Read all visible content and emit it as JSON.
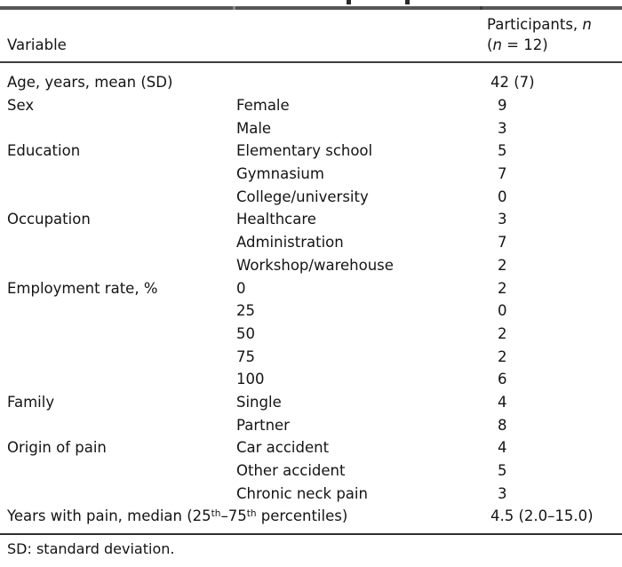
{
  "table": {
    "header": {
      "col1": "Variable",
      "col3_line1_text": "Participants, ",
      "col3_line1_italic": "n",
      "col3_line2_open": "(",
      "col3_line2_italic": "n",
      "col3_line2_rest": " = 12)"
    },
    "rows": [
      {
        "variable": "Age, years, mean (SD)",
        "category": "",
        "value": "42 (7)"
      },
      {
        "variable": "Sex",
        "category": "Female",
        "value": "9"
      },
      {
        "variable": "",
        "category": "Male",
        "value": "3"
      },
      {
        "variable": "Education",
        "category": "Elementary school",
        "value": "5"
      },
      {
        "variable": "",
        "category": "Gymnasium",
        "value": "7"
      },
      {
        "variable": "",
        "category": "College/university",
        "value": "0"
      },
      {
        "variable": "Occupation",
        "category": "Healthcare",
        "value": "3"
      },
      {
        "variable": "",
        "category": "Administration",
        "value": "7"
      },
      {
        "variable": "",
        "category": "Workshop/warehouse",
        "value": "2"
      },
      {
        "variable": "Employment rate, %",
        "category": "0",
        "value": "2"
      },
      {
        "variable": "",
        "category": "25",
        "value": "0"
      },
      {
        "variable": "",
        "category": "50",
        "value": "2"
      },
      {
        "variable": "",
        "category": "75",
        "value": "2"
      },
      {
        "variable": "",
        "category": "100",
        "value": "6"
      },
      {
        "variable": "Family",
        "category": "Single",
        "value": "4"
      },
      {
        "variable": "",
        "category": "Partner",
        "value": "8"
      },
      {
        "variable": "Origin of pain",
        "category": "Car accident",
        "value": "4"
      },
      {
        "variable": "",
        "category": "Other accident",
        "value": "5"
      },
      {
        "variable": "",
        "category": "Chronic neck pain",
        "value": "3"
      }
    ],
    "last_row": {
      "label_pre": "Years with pain, median (25",
      "label_sup1": "th",
      "label_mid": "–75",
      "label_sup2": "th",
      "label_post": " percentiles)",
      "value": "4.5 (2.0–15.0)"
    },
    "footnote": "SD: standard deviation."
  },
  "colors": {
    "background": "#ffffff",
    "text": "#141414",
    "rule_top": "#565656",
    "rule_mid": "#3d3d3d",
    "rule_bottom": "#2f2f2f"
  }
}
